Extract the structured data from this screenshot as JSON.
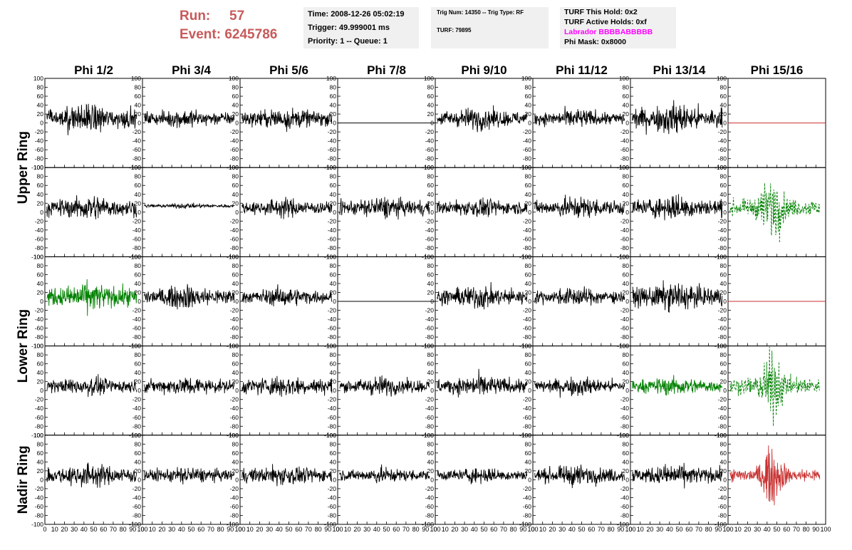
{
  "header": {
    "run_label": "Run:",
    "run_value": "57",
    "event_label": "Event:",
    "event_value": "6245786",
    "time_line": "Time: 2008-12-26 05:02:19",
    "trigger_line": "Trigger: 49.999001 ms",
    "priority_line": "Priority: 1 -- Queue: 1",
    "trig_num_line": "Trig Num: 14350 -- Trig Type: RF",
    "turf_line": "TURF: 79895",
    "turf_hold_line": "TURF This Hold: 0x2",
    "turf_active_line": "TURF Active Holds: 0xf",
    "labrador_line": "Labrador BBBBABBBBB",
    "phi_mask_line": "Phi Mask: 0x8000"
  },
  "chart_data": {
    "type": "line",
    "columns": [
      "Phi 1/2",
      "Phi 3/4",
      "Phi 5/6",
      "Phi 7/8",
      "Phi 9/10",
      "Phi 11/12",
      "Phi 13/14",
      "Phi 15/16"
    ],
    "ring_labels": [
      "Upper Ring",
      "Lower Ring",
      "Nadir Ring"
    ],
    "ylim": [
      -100,
      100
    ],
    "xlim": [
      0,
      100
    ],
    "y_ticks": [
      100,
      80,
      60,
      40,
      20,
      0,
      -20,
      -40,
      -60,
      -80,
      -100
    ],
    "x_ticks": [
      0,
      10,
      20,
      30,
      40,
      50,
      60,
      70,
      80,
      90,
      100
    ],
    "colors": {
      "normal": "#000000",
      "green": "#008000",
      "red": "#c83232"
    },
    "panels": [
      [
        "black",
        "black",
        "black",
        "flat",
        "black",
        "black",
        "black",
        "red-flat"
      ],
      [
        "black",
        "black-small",
        "black",
        "black",
        "black",
        "black",
        "black",
        "green-dash"
      ],
      [
        "green",
        "black",
        "black",
        "flat",
        "black",
        "black",
        "black",
        "red-flat"
      ],
      [
        "black",
        "black",
        "black",
        "black",
        "black",
        "black",
        "green",
        "green-dash"
      ],
      [
        "black",
        "black",
        "black",
        "black",
        "black",
        "black",
        "black",
        "red"
      ]
    ],
    "amplitudes": [
      [
        18,
        12,
        14,
        0,
        14,
        12,
        20,
        0
      ],
      [
        16,
        3,
        12,
        14,
        12,
        14,
        16,
        22
      ],
      [
        18,
        15,
        12,
        0,
        15,
        12,
        18,
        0
      ],
      [
        12,
        12,
        14,
        12,
        14,
        12,
        12,
        22
      ],
      [
        15,
        11,
        13,
        10,
        10,
        13,
        14,
        18
      ]
    ]
  }
}
